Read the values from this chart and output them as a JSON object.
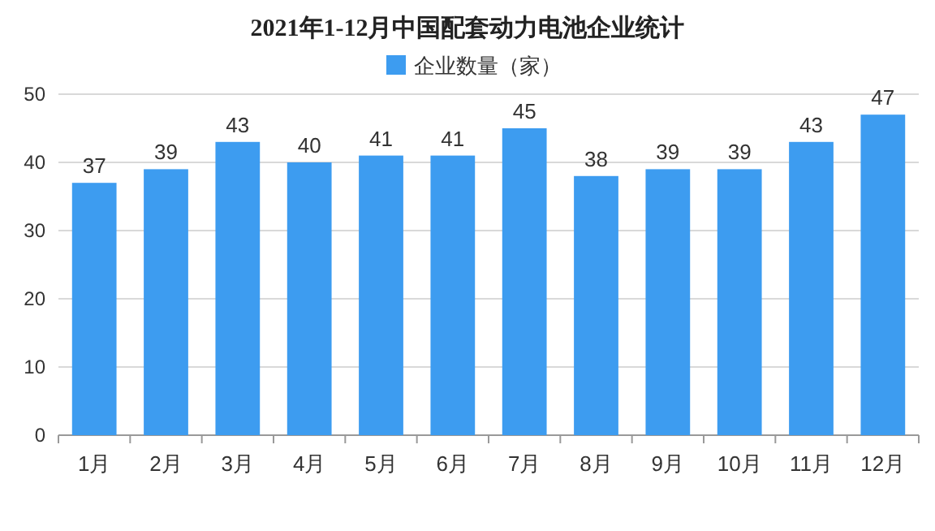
{
  "chart_data": {
    "type": "bar",
    "title": "2021年1-12月中国配套动力电池企业统计",
    "categories": [
      "1月",
      "2月",
      "3月",
      "4月",
      "5月",
      "6月",
      "7月",
      "8月",
      "9月",
      "10月",
      "11月",
      "12月"
    ],
    "series": [
      {
        "name": "企业数量（家）",
        "color": "#3d9cf0",
        "values": [
          37,
          39,
          43,
          40,
          41,
          41,
          45,
          38,
          39,
          39,
          43,
          47
        ]
      }
    ],
    "ylim": [
      0,
      50
    ],
    "yticks": [
      0,
      10,
      20,
      30,
      40,
      50
    ],
    "grid": "y",
    "legend": "top",
    "data_labels": true
  }
}
